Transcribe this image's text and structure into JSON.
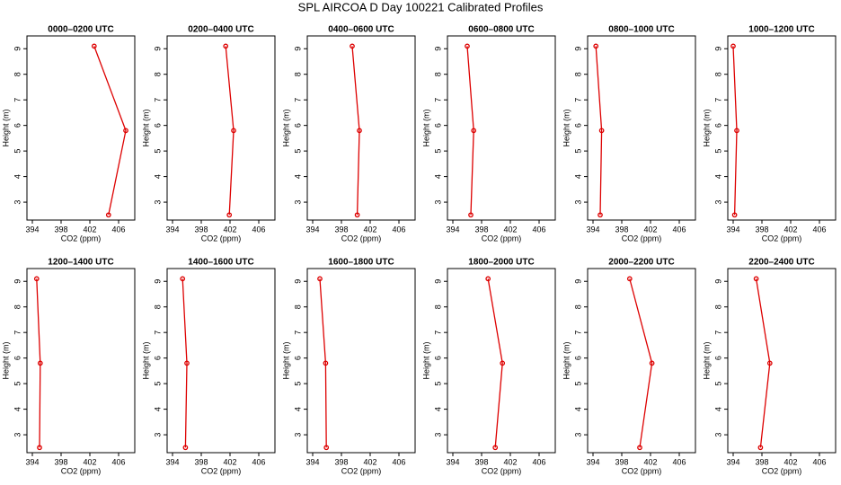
{
  "title": "SPL AIRCOA D  Day 100221  Calibrated Profiles",
  "chart_data": [
    {
      "type": "line",
      "title": "0000–0200 UTC",
      "xlabel": "CO2 (ppm)",
      "ylabel": "Height (m)",
      "y": [
        9.1,
        5.8,
        2.5
      ],
      "values": [
        402.6,
        407.0,
        404.6
      ],
      "color": "#dd0000",
      "xlim": [
        393.25,
        408.25
      ],
      "ylim": [
        2.3,
        9.5
      ],
      "xticks": [
        394,
        398,
        402,
        406
      ],
      "yticks": [
        3,
        4,
        5,
        6,
        7,
        8,
        9
      ]
    },
    {
      "type": "line",
      "title": "0200–0400 UTC",
      "xlabel": "CO2 (ppm)",
      "ylabel": "Height (m)",
      "y": [
        9.1,
        5.8,
        2.5
      ],
      "values": [
        401.4,
        402.5,
        401.9
      ],
      "color": "#dd0000",
      "xlim": [
        393.25,
        408.25
      ],
      "ylim": [
        2.3,
        9.5
      ],
      "xticks": [
        394,
        398,
        402,
        406
      ],
      "yticks": [
        3,
        4,
        5,
        6,
        7,
        8,
        9
      ]
    },
    {
      "type": "line",
      "title": "0400–0600 UTC",
      "xlabel": "CO2 (ppm)",
      "ylabel": "Height (m)",
      "y": [
        9.1,
        5.8,
        2.5
      ],
      "values": [
        399.5,
        400.5,
        400.2
      ],
      "color": "#dd0000",
      "xlim": [
        393.25,
        408.25
      ],
      "ylim": [
        2.3,
        9.5
      ],
      "xticks": [
        394,
        398,
        402,
        406
      ],
      "yticks": [
        3,
        4,
        5,
        6,
        7,
        8,
        9
      ]
    },
    {
      "type": "line",
      "title": "0600–0800 UTC",
      "xlabel": "CO2 (ppm)",
      "ylabel": "Height (m)",
      "y": [
        9.1,
        5.8,
        2.5
      ],
      "values": [
        396.0,
        396.9,
        396.5
      ],
      "color": "#dd0000",
      "xlim": [
        393.25,
        408.25
      ],
      "ylim": [
        2.3,
        9.5
      ],
      "xticks": [
        394,
        398,
        402,
        406
      ],
      "yticks": [
        3,
        4,
        5,
        6,
        7,
        8,
        9
      ]
    },
    {
      "type": "line",
      "title": "0800–1000 UTC",
      "xlabel": "CO2 (ppm)",
      "ylabel": "Height (m)",
      "y": [
        9.1,
        5.8,
        2.5
      ],
      "values": [
        394.4,
        395.2,
        395.0
      ],
      "color": "#dd0000",
      "xlim": [
        393.25,
        408.25
      ],
      "ylim": [
        2.3,
        9.5
      ],
      "xticks": [
        394,
        398,
        402,
        406
      ],
      "yticks": [
        3,
        4,
        5,
        6,
        7,
        8,
        9
      ]
    },
    {
      "type": "line",
      "title": "1000–1200 UTC",
      "xlabel": "CO2 (ppm)",
      "ylabel": "Height (m)",
      "y": [
        9.1,
        5.8,
        2.5
      ],
      "values": [
        394.0,
        394.5,
        394.2
      ],
      "color": "#dd0000",
      "xlim": [
        393.25,
        408.25
      ],
      "ylim": [
        2.3,
        9.5
      ],
      "xticks": [
        394,
        398,
        402,
        406
      ],
      "yticks": [
        3,
        4,
        5,
        6,
        7,
        8,
        9
      ]
    },
    {
      "type": "line",
      "title": "1200–1400 UTC",
      "xlabel": "CO2 (ppm)",
      "ylabel": "Height (m)",
      "y": [
        9.1,
        5.8,
        2.5
      ],
      "values": [
        394.6,
        395.1,
        395.0
      ],
      "color": "#dd0000",
      "xlim": [
        393.25,
        408.25
      ],
      "ylim": [
        2.3,
        9.5
      ],
      "xticks": [
        394,
        398,
        402,
        406
      ],
      "yticks": [
        3,
        4,
        5,
        6,
        7,
        8,
        9
      ]
    },
    {
      "type": "line",
      "title": "1400–1600 UTC",
      "xlabel": "CO2 (ppm)",
      "ylabel": "Height (m)",
      "y": [
        9.1,
        5.8,
        2.5
      ],
      "values": [
        395.4,
        396.0,
        395.8
      ],
      "color": "#dd0000",
      "xlim": [
        393.25,
        408.25
      ],
      "ylim": [
        2.3,
        9.5
      ],
      "xticks": [
        394,
        398,
        402,
        406
      ],
      "yticks": [
        3,
        4,
        5,
        6,
        7,
        8,
        9
      ]
    },
    {
      "type": "line",
      "title": "1600–1800 UTC",
      "xlabel": "CO2 (ppm)",
      "ylabel": "Height (m)",
      "y": [
        9.1,
        5.8,
        2.5
      ],
      "values": [
        395.0,
        395.8,
        395.9
      ],
      "color": "#dd0000",
      "xlim": [
        393.25,
        408.25
      ],
      "ylim": [
        2.3,
        9.5
      ],
      "xticks": [
        394,
        398,
        402,
        406
      ],
      "yticks": [
        3,
        4,
        5,
        6,
        7,
        8,
        9
      ]
    },
    {
      "type": "line",
      "title": "1800–2000 UTC",
      "xlabel": "CO2 (ppm)",
      "ylabel": "Height (m)",
      "y": [
        9.1,
        5.8,
        2.5
      ],
      "values": [
        398.9,
        400.9,
        399.9
      ],
      "color": "#dd0000",
      "xlim": [
        393.25,
        408.25
      ],
      "ylim": [
        2.3,
        9.5
      ],
      "xticks": [
        394,
        398,
        402,
        406
      ],
      "yticks": [
        3,
        4,
        5,
        6,
        7,
        8,
        9
      ]
    },
    {
      "type": "line",
      "title": "2000–2200 UTC",
      "xlabel": "CO2 (ppm)",
      "ylabel": "Height (m)",
      "y": [
        9.1,
        5.8,
        2.5
      ],
      "values": [
        399.1,
        402.2,
        400.5
      ],
      "color": "#dd0000",
      "xlim": [
        393.25,
        408.25
      ],
      "ylim": [
        2.3,
        9.5
      ],
      "xticks": [
        394,
        398,
        402,
        406
      ],
      "yticks": [
        3,
        4,
        5,
        6,
        7,
        8,
        9
      ]
    },
    {
      "type": "line",
      "title": "2200–2400 UTC",
      "xlabel": "CO2 (ppm)",
      "ylabel": "Height (m)",
      "y": [
        9.1,
        5.8,
        2.5
      ],
      "values": [
        397.2,
        399.1,
        397.8
      ],
      "color": "#dd0000",
      "xlim": [
        393.25,
        408.25
      ],
      "ylim": [
        2.3,
        9.5
      ],
      "xticks": [
        394,
        398,
        402,
        406
      ],
      "yticks": [
        3,
        4,
        5,
        6,
        7,
        8,
        9
      ]
    }
  ]
}
